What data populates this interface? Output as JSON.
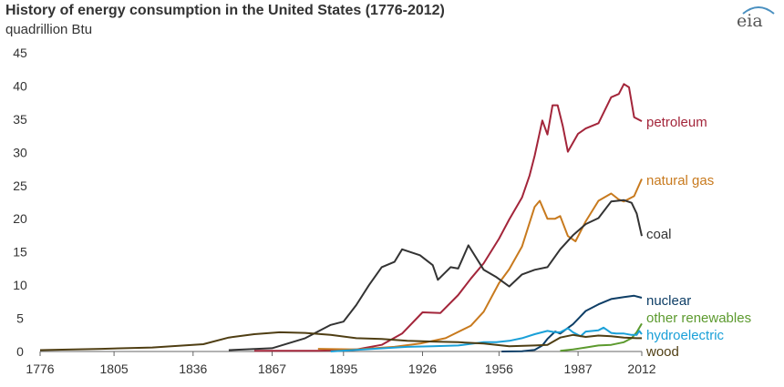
{
  "title": "History of energy consumption in the United States (1776-2012)",
  "unit": "quadrillion Btu",
  "logo": "eia",
  "chart_data": {
    "type": "line",
    "title": "History of energy consumption in the United States (1776-2012)",
    "ylabel": "quadrillion Btu",
    "xlim": [
      1776,
      2012
    ],
    "ylim": [
      0,
      45
    ],
    "x_ticks": [
      1776,
      1805,
      1836,
      1867,
      1895,
      1926,
      1956,
      1987,
      2012
    ],
    "y_ticks": [
      0,
      5,
      10,
      15,
      20,
      25,
      30,
      35,
      40,
      45
    ],
    "grid": false,
    "legend": "inline-right",
    "series": [
      {
        "name": "petroleum",
        "color": "#a3253a",
        "x": [
          1860,
          1885,
          1900,
          1910,
          1918,
          1926,
          1933,
          1940,
          1945,
          1950,
          1956,
          1960,
          1965,
          1968,
          1970,
          1973,
          1975,
          1977,
          1979,
          1981,
          1983,
          1987,
          1990,
          1995,
          2000,
          2003,
          2005,
          2007,
          2009,
          2012
        ],
        "y": [
          0.1,
          0.1,
          0.3,
          1.0,
          2.7,
          5.9,
          5.8,
          8.5,
          11,
          13.3,
          17,
          19.9,
          23.2,
          26.5,
          29.5,
          34.8,
          32.7,
          37.1,
          37.1,
          34.0,
          30.1,
          32.8,
          33.6,
          34.4,
          38.3,
          38.8,
          40.3,
          39.8,
          35.3,
          34.7
        ]
      },
      {
        "name": "natural gas",
        "color": "#c87a1e",
        "x": [
          1885,
          1900,
          1915,
          1925,
          1935,
          1945,
          1950,
          1956,
          1960,
          1965,
          1970,
          1972,
          1975,
          1978,
          1980,
          1983,
          1986,
          1990,
          1995,
          2000,
          2003,
          2005,
          2009,
          2012
        ],
        "y": [
          0.4,
          0.3,
          0.7,
          1.2,
          2.0,
          3.9,
          6.0,
          10.3,
          12.4,
          15.8,
          21.8,
          22.7,
          20.0,
          20.0,
          20.4,
          17.4,
          16.6,
          19.6,
          22.7,
          23.8,
          22.9,
          22.6,
          23.4,
          26.0
        ]
      },
      {
        "name": "coal",
        "color": "#333333",
        "x": [
          1850,
          1867,
          1880,
          1890,
          1895,
          1900,
          1905,
          1910,
          1915,
          1918,
          1925,
          1930,
          1932,
          1937,
          1940,
          1944,
          1950,
          1955,
          1960,
          1965,
          1970,
          1975,
          1980,
          1985,
          1990,
          1995,
          2000,
          2005,
          2008,
          2010,
          2012
        ],
        "y": [
          0.2,
          0.5,
          2.0,
          4.0,
          4.5,
          7.0,
          10.0,
          12.7,
          13.5,
          15.4,
          14.5,
          13.0,
          10.8,
          12.7,
          12.5,
          16.0,
          12.3,
          11.2,
          9.8,
          11.6,
          12.3,
          12.7,
          15.4,
          17.5,
          19.2,
          20.1,
          22.6,
          22.8,
          22.4,
          20.8,
          17.4
        ]
      },
      {
        "name": "nuclear",
        "color": "#0e3e66",
        "x": [
          1957,
          1965,
          1970,
          1973,
          1975,
          1978,
          1980,
          1985,
          1990,
          1995,
          2000,
          2005,
          2009,
          2012
        ],
        "y": [
          0.0,
          0.04,
          0.24,
          0.9,
          1.9,
          3.0,
          2.7,
          4.1,
          6.1,
          7.1,
          7.9,
          8.2,
          8.4,
          8.1
        ]
      },
      {
        "name": "other renewables",
        "color": "#5c9a2e",
        "x": [
          1980,
          1985,
          1990,
          1995,
          2000,
          2005,
          2008,
          2010,
          2012
        ],
        "y": [
          0.1,
          0.3,
          0.6,
          0.9,
          1.0,
          1.4,
          2.0,
          2.9,
          4.2
        ]
      },
      {
        "name": "hydroelectric",
        "color": "#1aa0d8",
        "x": [
          1890,
          1900,
          1920,
          1930,
          1940,
          1950,
          1955,
          1960,
          1965,
          1970,
          1975,
          1978,
          1980,
          1983,
          1985,
          1988,
          1990,
          1995,
          1997,
          2000,
          2002,
          2005,
          2008,
          2010,
          2011,
          2012
        ],
        "y": [
          0.0,
          0.25,
          0.7,
          0.8,
          0.9,
          1.4,
          1.4,
          1.6,
          2.0,
          2.6,
          3.1,
          2.9,
          2.9,
          3.5,
          2.9,
          2.3,
          3.0,
          3.2,
          3.6,
          2.8,
          2.7,
          2.7,
          2.5,
          2.5,
          3.1,
          2.6
        ]
      },
      {
        "name": "wood",
        "color": "#4f3e13",
        "x": [
          1776,
          1800,
          1820,
          1840,
          1850,
          1860,
          1870,
          1880,
          1890,
          1900,
          1910,
          1920,
          1930,
          1940,
          1950,
          1960,
          1970,
          1975,
          1980,
          1985,
          1990,
          1995,
          2000,
          2005,
          2010,
          2012
        ],
        "y": [
          0.2,
          0.4,
          0.6,
          1.1,
          2.1,
          2.6,
          2.9,
          2.8,
          2.5,
          2.0,
          1.9,
          1.6,
          1.5,
          1.4,
          1.2,
          0.8,
          0.9,
          1.0,
          2.1,
          2.5,
          2.2,
          2.4,
          2.3,
          2.1,
          2.0,
          2.0
        ]
      }
    ]
  }
}
